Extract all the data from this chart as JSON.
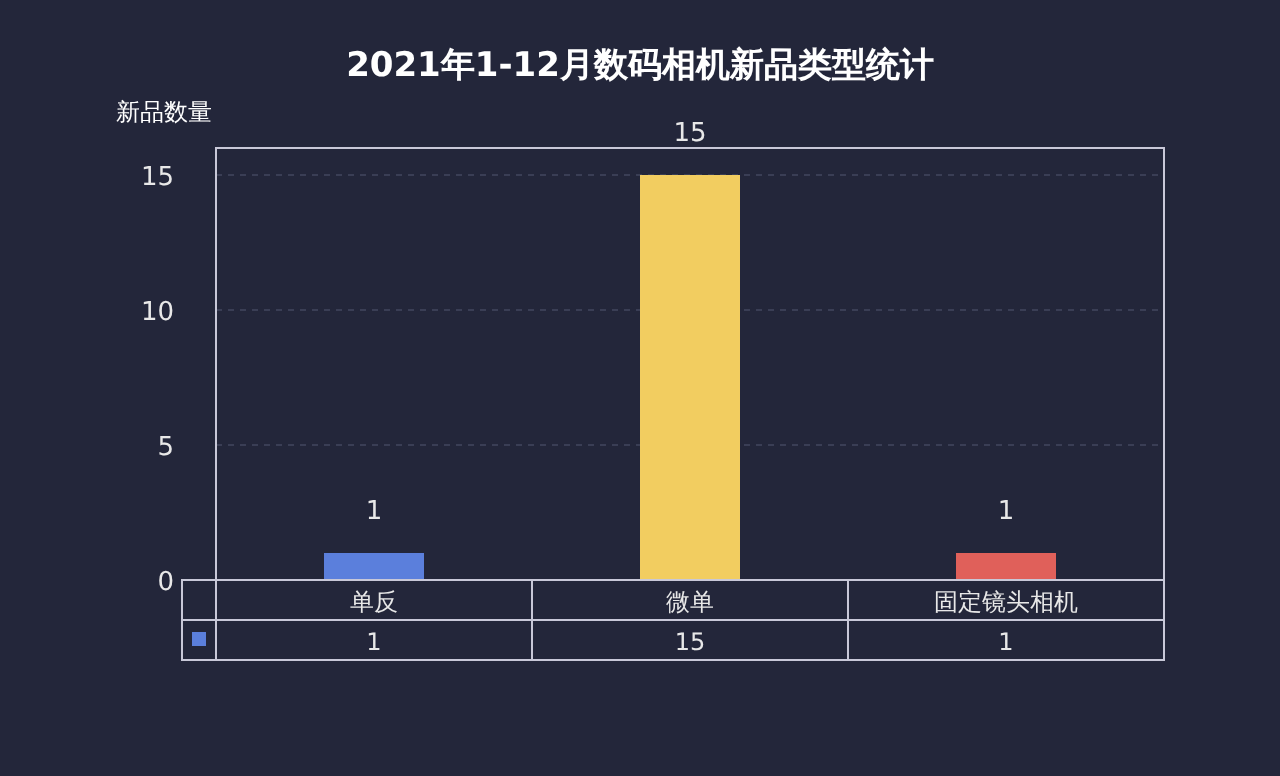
{
  "chart_data": {
    "type": "bar",
    "title": "2021年1-12月数码相机新品类型统计",
    "ylabel": "新品数量",
    "categories": [
      "单反",
      "微单",
      "固定镜头相机"
    ],
    "values": [
      1,
      15,
      1
    ],
    "colors": [
      "#5b7fdc",
      "#f2cd60",
      "#e0605a"
    ],
    "value_labels": [
      "1",
      "15",
      "1"
    ],
    "ylim": [
      0,
      16
    ],
    "yticks": [
      0,
      5,
      10,
      15
    ],
    "grid": "y",
    "annotations": [
      "1",
      "15",
      "1"
    ]
  }
}
